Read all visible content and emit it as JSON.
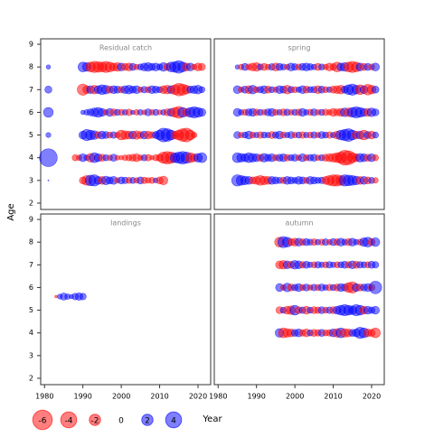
{
  "xlabel": "Year",
  "ylabel": "Age",
  "size_legend": [
    -6,
    -4,
    -2,
    0,
    2,
    4
  ],
  "positive_color": "#0000ff",
  "negative_color": "#ff0000",
  "chart_data": [
    {
      "type": "bubble",
      "title": "Residual catch",
      "xlim": [
        1979,
        2023.3
      ],
      "ylim": [
        1.72,
        9.24
      ],
      "xticks": [
        1980,
        1990,
        2000,
        2010,
        2020
      ],
      "yticks": [
        2,
        3,
        4,
        5,
        6,
        7,
        8,
        9
      ],
      "x": [
        1981,
        1988,
        1989,
        1990,
        1991,
        1992,
        1993,
        1994,
        1995,
        1996,
        1997,
        1998,
        1999,
        2000,
        2001,
        2002,
        2003,
        2004,
        2005,
        2006,
        2007,
        2008,
        2009,
        2010,
        2011,
        2012,
        2013,
        2014,
        2015,
        2016,
        2017,
        2018,
        2019,
        2020,
        2021
      ],
      "ages": [
        3,
        4,
        5,
        6,
        7,
        8
      ],
      "residuals": [
        [
          0,
          null,
          null,
          -0.8,
          -1.5,
          1.8,
          2,
          1,
          -1,
          1.2,
          0.8,
          1,
          -0.5,
          0.8,
          0.7,
          -0.6,
          0.6,
          -0.5,
          0.8,
          -0.7,
          -0.5,
          -0.6,
          0.4,
          -0.8,
          -1.2,
          null,
          null,
          null,
          null,
          null,
          null,
          null,
          null,
          null,
          null
        ],
        [
          5,
          -0.6,
          -0.5,
          1,
          0.5,
          -1.2,
          1.5,
          1,
          -0.8,
          0.6,
          -0.5,
          0.8,
          -0.4,
          -0.3,
          -0.5,
          -0.6,
          -0.8,
          -1,
          -0.5,
          0.6,
          -0.7,
          -0.3,
          -0.6,
          -0.8,
          -2,
          -2.5,
          -2,
          1.5,
          2,
          2.5,
          2,
          -1.5,
          -1,
          1.2,
          1.5
        ],
        [
          0.4,
          null,
          null,
          1,
          2,
          1.5,
          1.2,
          -0.8,
          1,
          0.8,
          -0.6,
          0.7,
          -0.5,
          -1.5,
          -1.2,
          -1,
          1,
          -1.2,
          -0.8,
          1,
          -1,
          -0.7,
          0.8,
          1.5,
          3,
          2.5,
          1.5,
          -1,
          -1.5,
          -2.5,
          -3,
          -1.5,
          -0.5,
          null,
          null
        ],
        [
          1.5,
          null,
          null,
          0.3,
          0.5,
          0.8,
          1.2,
          1.5,
          1,
          -0.5,
          1,
          -0.8,
          0.6,
          -0.6,
          0.5,
          -0.7,
          0.3,
          -0.5,
          0.5,
          -0.4,
          0.8,
          -0.5,
          0.6,
          -0.4,
          0.5,
          -0.8,
          1,
          -1.5,
          -2.2,
          1.5,
          -1,
          1.5,
          2,
          1.5,
          1
        ],
        [
          0.8,
          null,
          null,
          -2,
          -1,
          1,
          -1.2,
          1,
          1.5,
          1.2,
          -0.8,
          1,
          0.8,
          -0.7,
          1,
          1.2,
          0.8,
          1,
          -0.5,
          0.7,
          -0.6,
          1,
          0.8,
          0.6,
          -1,
          -1.2,
          1,
          -1.5,
          -2.5,
          -2,
          -1.2,
          0.8,
          1,
          1.2,
          0.6
        ],
        [
          0.3,
          null,
          null,
          1.5,
          1.2,
          -1.5,
          -2,
          -1.8,
          -1.5,
          -2,
          -1.5,
          -1,
          -1.2,
          1,
          -0.8,
          -1,
          0.8,
          -0.5,
          0.6,
          1,
          1.2,
          0.8,
          1,
          0.6,
          1.2,
          -0.8,
          1.5,
          1.8,
          2.5,
          1.5,
          -1,
          1,
          -0.5,
          -1,
          -0.8
        ]
      ]
    },
    {
      "type": "bubble",
      "title": "spring",
      "xlim": [
        1979,
        2023.3
      ],
      "ylim": [
        1.72,
        9.24
      ],
      "xticks": [
        1980,
        1990,
        2000,
        2010,
        2020
      ],
      "yticks": [
        2,
        3,
        4,
        5,
        6,
        7,
        8,
        9
      ],
      "x": [
        1985,
        1986,
        1987,
        1988,
        1989,
        1990,
        1991,
        1992,
        1993,
        1994,
        1995,
        1996,
        1997,
        1998,
        1999,
        2000,
        2001,
        2002,
        2003,
        2004,
        2005,
        2006,
        2007,
        2008,
        2009,
        2010,
        2011,
        2012,
        2013,
        2014,
        2015,
        2016,
        2017,
        2018,
        2019,
        2020,
        2021
      ],
      "ages": [
        3,
        4,
        5,
        6,
        7,
        8
      ],
      "residuals": [
        [
          2,
          1.5,
          1.2,
          1,
          -0.8,
          -1,
          -1.5,
          -1.2,
          -1,
          1,
          0.8,
          0.6,
          -0.7,
          1,
          0.8,
          0.6,
          1,
          0.8,
          -0.6,
          1,
          0.8,
          0.6,
          0.7,
          -1,
          -1.5,
          -2,
          -2,
          -1.5,
          2,
          1.8,
          1.5,
          1.2,
          -1,
          1,
          -0.8,
          0.6,
          -0.5
        ],
        [
          1.5,
          1.2,
          1,
          1.5,
          1.2,
          1,
          -0.8,
          1.2,
          0.8,
          1,
          -0.6,
          0.8,
          1,
          -0.7,
          0.6,
          0.8,
          -0.5,
          1,
          -0.6,
          0.7,
          0.8,
          -0.5,
          0.6,
          -0.8,
          -1,
          -1.2,
          -1.5,
          -2,
          -3.5,
          -3,
          -1.5,
          -1,
          1.2,
          1,
          -0.8,
          1,
          -0.6
        ],
        [
          0.8,
          -0.5,
          0.6,
          1,
          -0.6,
          0.5,
          -0.7,
          0.6,
          0.5,
          -0.8,
          0.7,
          1,
          -0.6,
          0.5,
          0.8,
          -0.5,
          0.6,
          -0.7,
          0.5,
          -0.6,
          0.7,
          -0.5,
          0.8,
          0.6,
          -0.7,
          0.5,
          -1,
          1.5,
          2,
          2.5,
          1.5,
          -1,
          1,
          -1.5,
          0.8,
          -1,
          0.6
        ],
        [
          1,
          0.5,
          -0.6,
          0.8,
          1,
          -0.7,
          0.6,
          -0.5,
          0.8,
          1,
          -0.6,
          0.5,
          -0.8,
          0.7,
          -0.5,
          0.6,
          -0.7,
          1,
          0.5,
          -0.6,
          0.8,
          -0.5,
          0.6,
          -0.7,
          -0.5,
          -1,
          -0.8,
          -1,
          1.2,
          -1.2,
          1.5,
          2,
          1.5,
          1,
          -1,
          1.2,
          0.8
        ],
        [
          1,
          -0.5,
          0.8,
          -1,
          1.2,
          -0.6,
          0.7,
          1,
          -0.8,
          0.6,
          -0.5,
          1,
          0.8,
          -1.2,
          0.7,
          -0.6,
          0.5,
          1,
          -0.8,
          0.6,
          0.7,
          -1,
          0.8,
          -0.6,
          0.5,
          -0.8,
          -1,
          -1.2,
          0.8,
          1.5,
          2,
          1.2,
          -1.5,
          1,
          -1.8,
          -1.2,
          0.8
        ],
        [
          0.3,
          -0.5,
          0.8,
          -0.6,
          -1,
          -1.2,
          0.6,
          -0.8,
          -0.5,
          0.7,
          -1,
          0.8,
          0.6,
          -0.5,
          1,
          0.7,
          -0.6,
          0.8,
          1,
          0.7,
          0.5,
          -0.8,
          0.6,
          -0.5,
          -1,
          -0.7,
          -1.5,
          1,
          1.2,
          -1.5,
          -2,
          -1.5,
          1,
          -0.8,
          0.8,
          -0.6,
          1
        ]
      ]
    },
    {
      "type": "bubble",
      "title": "landings",
      "xlim": [
        1979,
        2023.3
      ],
      "ylim": [
        1.72,
        9.24
      ],
      "xticks": [
        1980,
        1990,
        2000,
        2010,
        2020
      ],
      "yticks": [
        2,
        3,
        4,
        5,
        6,
        7,
        8,
        9
      ],
      "x": [
        1983,
        1984,
        1985,
        1986,
        1987,
        1988,
        1989,
        1990
      ],
      "ages": [
        5.6
      ],
      "residuals": [
        [
          -0.1,
          0.4,
          0.8,
          0.5,
          0.3,
          0.7,
          0.9,
          0.7
        ]
      ]
    },
    {
      "type": "bubble",
      "title": "autumn",
      "xlim": [
        1979,
        2023.3
      ],
      "ylim": [
        1.72,
        9.24
      ],
      "xticks": [
        1980,
        1990,
        2000,
        2010,
        2020
      ],
      "yticks": [
        2,
        3,
        4,
        5,
        6,
        7,
        8,
        9
      ],
      "x": [
        1996,
        1997,
        1998,
        1999,
        2000,
        2001,
        2002,
        2003,
        2004,
        2005,
        2006,
        2007,
        2008,
        2009,
        2010,
        2011,
        2012,
        2013,
        2014,
        2015,
        2016,
        2017,
        2018,
        2019,
        2020,
        2021
      ],
      "ages": [
        4,
        5,
        6,
        7,
        8
      ],
      "residuals": [
        [
          1.2,
          -1.5,
          -1.2,
          -1,
          0.8,
          1,
          -0.7,
          -1,
          0.6,
          -0.8,
          -0.7,
          0.8,
          -0.6,
          -0.7,
          1,
          -1.2,
          1.5,
          -1.2,
          -1,
          0.8,
          1,
          2,
          1.5,
          -1,
          -0.8,
          -1.5
        ],
        [
          -0.8,
          0.6,
          -1,
          -1.2,
          1.5,
          -0.8,
          0.7,
          -1,
          0.6,
          -0.8,
          -0.7,
          0.8,
          -0.6,
          0.7,
          -0.8,
          1,
          1.5,
          2,
          1.5,
          1.2,
          2,
          1.5,
          -1,
          1,
          0.7,
          1
        ],
        [
          1,
          -0.5,
          1.2,
          -0.8,
          0.7,
          1,
          -0.6,
          0.8,
          -0.5,
          0.7,
          -0.6,
          0.8,
          0.5,
          -0.7,
          0.6,
          -0.8,
          1,
          0.8,
          -1.5,
          -2,
          1,
          -0.8,
          0.8,
          1,
          -0.7,
          2.5
        ],
        [
          -1,
          -1.2,
          1,
          -0.8,
          1.2,
          1,
          -0.7,
          0.8,
          0.5,
          -0.6,
          0.7,
          0.5,
          -0.6,
          0.7,
          0.5,
          -0.6,
          0.6,
          0.8,
          -0.7,
          1,
          -0.8,
          0.7,
          0.6,
          -0.6,
          0.8,
          0.7
        ],
        [
          -1.5,
          2,
          1.5,
          -0.8,
          -1,
          1,
          -0.7,
          0.8,
          0.6,
          -0.7,
          0.5,
          -0.6,
          0.7,
          -0.5,
          0.8,
          -0.7,
          1,
          0.6,
          -0.8,
          1,
          0.5,
          -0.6,
          1.2,
          1.5,
          -0.8,
          1.2
        ]
      ]
    }
  ]
}
